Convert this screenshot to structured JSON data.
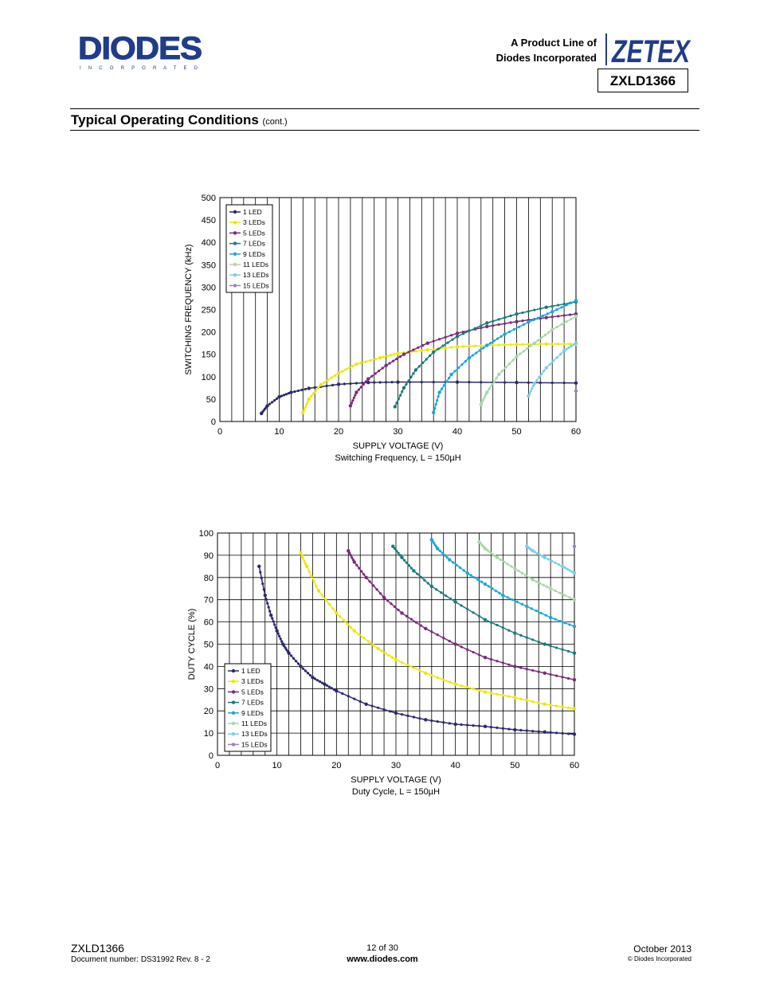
{
  "header": {
    "brand_logo": "DIODES",
    "brand_sub": "I N C O R P O R A T E D",
    "product_line_1": "A Product Line of",
    "product_line_2": "Diodes Incorporated",
    "zetex_logo": "ZETEX",
    "part_number": "ZXLD1366"
  },
  "section": {
    "title": "Typical Operating Conditions",
    "title_suffix": "(cont.)"
  },
  "footer": {
    "part": "ZXLD1366",
    "doc_number": "Document number: DS31992 Rev. 8 - 2",
    "page": "12 of 30",
    "website": "www.diodes.com",
    "date": "October 2013",
    "copyright": "© Diodes Incorporated"
  },
  "chart_data": [
    {
      "type": "line",
      "ylabel": "SWITCHING FREQUENCY (kHz)",
      "xlabel": "SUPPLY VOLTAGE (V)",
      "caption": "Switching Frequency, L = 150µH",
      "xlim": [
        0,
        60
      ],
      "ylim": [
        0,
        500
      ],
      "xticks": [
        "0",
        "10",
        "20",
        "30",
        "40",
        "50",
        "60"
      ],
      "yticks": [
        "0",
        "50",
        "100",
        "150",
        "200",
        "250",
        "300",
        "350",
        "400",
        "450",
        "500"
      ],
      "grid": "vertical",
      "legend_position": "top-left",
      "series": [
        {
          "name": "1 LED",
          "color": "#2b2a6e",
          "x": [
            7,
            8,
            10,
            12,
            15,
            20,
            25,
            30,
            40,
            50,
            60
          ],
          "values": [
            18,
            35,
            55,
            65,
            74,
            83,
            87,
            88,
            88,
            87,
            86
          ]
        },
        {
          "name": "3 LEDs",
          "color": "#eee800",
          "x": [
            14,
            15,
            17,
            20,
            23,
            27,
            30,
            35,
            40,
            45,
            50,
            55,
            60
          ],
          "values": [
            20,
            50,
            82,
            108,
            128,
            142,
            152,
            160,
            167,
            170,
            172,
            173,
            173
          ]
        },
        {
          "name": "5 LEDs",
          "color": "#7a2a7a",
          "x": [
            22,
            23,
            25,
            28,
            31,
            35,
            40,
            45,
            50,
            55,
            60
          ],
          "values": [
            35,
            65,
            95,
            125,
            150,
            175,
            197,
            212,
            223,
            232,
            240
          ]
        },
        {
          "name": "7 LEDs",
          "color": "#1a7a7a",
          "x": [
            29.5,
            31,
            33,
            36,
            40,
            45,
            50,
            55,
            60
          ],
          "values": [
            33,
            75,
            115,
            155,
            190,
            220,
            240,
            255,
            267
          ]
        },
        {
          "name": "9 LEDs",
          "color": "#1aa8d8",
          "x": [
            36,
            37,
            39,
            42,
            45,
            48,
            52,
            56,
            60
          ],
          "values": [
            20,
            65,
            105,
            142,
            170,
            195,
            222,
            245,
            270
          ]
        },
        {
          "name": "11 LEDs",
          "color": "#a8d8a8",
          "x": [
            44,
            45,
            47,
            50,
            53,
            56,
            60
          ],
          "values": [
            38,
            65,
            105,
            145,
            175,
            205,
            235
          ]
        },
        {
          "name": "13 LEDs",
          "color": "#7ad0e8",
          "x": [
            52,
            53,
            55,
            58,
            60
          ],
          "values": [
            57,
            85,
            120,
            158,
            175
          ]
        },
        {
          "name": "15 LEDs",
          "color": "#a080c0",
          "x": [
            60
          ],
          "values": [
            68
          ]
        }
      ]
    },
    {
      "type": "line",
      "ylabel": "DUTY CYCLE (%)",
      "xlabel": "SUPPLY VOLTAGE (V)",
      "caption": "Duty Cycle, L = 150µH",
      "xlim": [
        0,
        60
      ],
      "ylim": [
        0,
        100
      ],
      "xticks": [
        "0",
        "10",
        "20",
        "30",
        "40",
        "50",
        "60"
      ],
      "yticks": [
        "0",
        "10",
        "20",
        "30",
        "40",
        "50",
        "60",
        "70",
        "80",
        "90",
        "100"
      ],
      "grid": "both",
      "legend_position": "bottom-left",
      "series": [
        {
          "name": "1 LED",
          "color": "#2b2a6e",
          "x": [
            7,
            8,
            9,
            10,
            11,
            12,
            14,
            16,
            18,
            20,
            25,
            30,
            35,
            40,
            45,
            50,
            55,
            60
          ],
          "values": [
            85,
            72,
            63,
            56,
            50,
            46,
            40,
            35,
            32,
            29,
            23,
            19,
            16,
            14,
            13,
            11.5,
            10.5,
            9.5
          ]
        },
        {
          "name": "3 LEDs",
          "color": "#eee800",
          "x": [
            14,
            15,
            17,
            20,
            23,
            27,
            30,
            35,
            40,
            45,
            50,
            55,
            60
          ],
          "values": [
            91,
            85,
            74,
            64,
            56,
            48,
            43,
            37,
            32,
            28.5,
            26,
            23,
            21
          ]
        },
        {
          "name": "5 LEDs",
          "color": "#7a2a7a",
          "x": [
            22,
            23,
            25,
            28,
            31,
            35,
            40,
            45,
            50,
            55,
            60
          ],
          "values": [
            92,
            87,
            80,
            71,
            64,
            57,
            50,
            44,
            40,
            37,
            34
          ]
        },
        {
          "name": "7 LEDs",
          "color": "#1a7a7a",
          "x": [
            29.5,
            31,
            33,
            36,
            40,
            45,
            50,
            55,
            60
          ],
          "values": [
            94,
            89,
            83,
            76,
            69,
            61,
            55,
            50,
            46
          ]
        },
        {
          "name": "9 LEDs",
          "color": "#1aa8d8",
          "x": [
            36,
            37,
            39,
            42,
            45,
            48,
            52,
            56,
            60
          ],
          "values": [
            97,
            93,
            88,
            82,
            77,
            72,
            67,
            62,
            58
          ]
        },
        {
          "name": "11 LEDs",
          "color": "#a8d8a8",
          "x": [
            44,
            45,
            47,
            50,
            53,
            56,
            60
          ],
          "values": [
            96,
            93,
            89,
            84,
            79,
            75,
            70
          ]
        },
        {
          "name": "13 LEDs",
          "color": "#7ad0e8",
          "x": [
            52,
            53,
            55,
            58,
            60
          ],
          "values": [
            94,
            92,
            89,
            85,
            82
          ]
        },
        {
          "name": "15 LEDs",
          "color": "#a080c0",
          "x": [
            60
          ],
          "values": [
            94
          ]
        }
      ]
    }
  ]
}
